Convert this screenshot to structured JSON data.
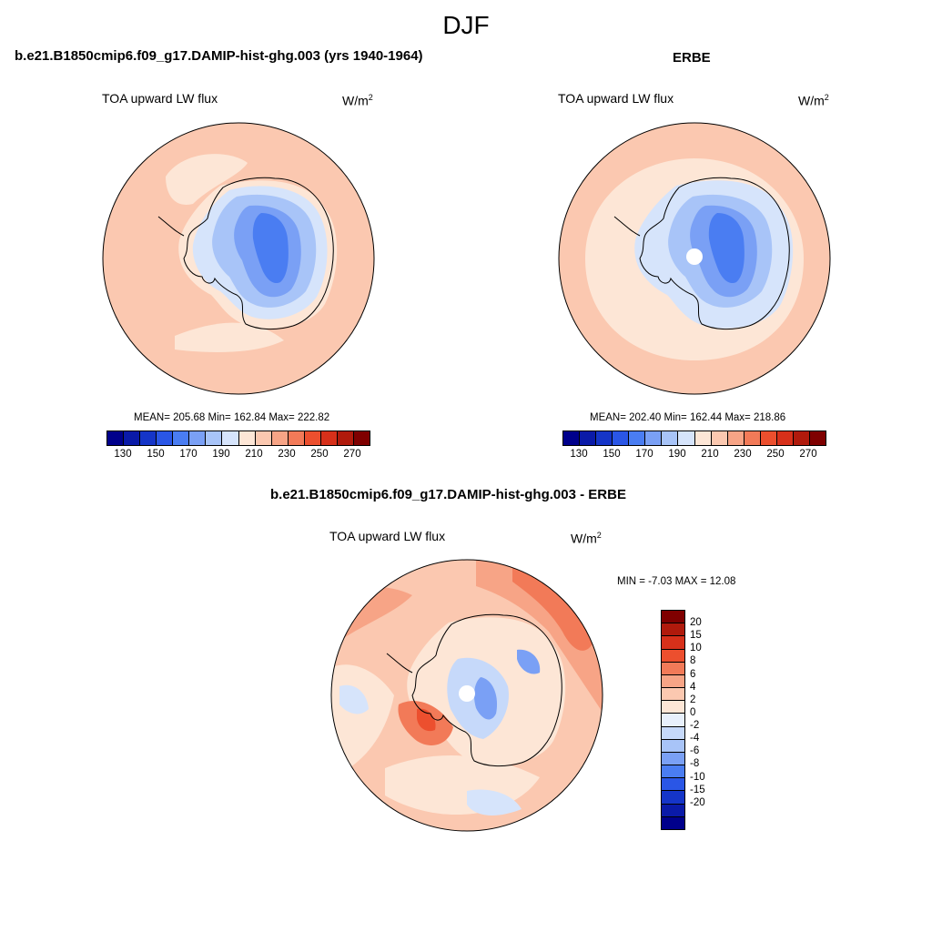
{
  "figure_title": "DJF",
  "panels": [
    {
      "case_title": "b.e21.B1850cmip6.f09_g17.DAMIP-hist-ghg.003 (yrs 1940-1964)",
      "variable": "TOA upward LW flux",
      "units_base": "W/m",
      "units_exp": "2",
      "stats": "MEAN= 205.68  Min= 162.84  Max= 222.82"
    },
    {
      "case_title": "ERBE",
      "variable": "TOA upward LW flux",
      "units_base": "W/m",
      "units_exp": "2",
      "stats": "MEAN= 202.40  Min= 162.44  Max= 218.86"
    },
    {
      "case_title": "b.e21.B1850cmip6.f09_g17.DAMIP-hist-ghg.003 - ERBE",
      "variable": "TOA upward LW flux",
      "units_base": "W/m",
      "units_exp": "2",
      "stats": "MIN =  -7.03 MAX =  12.08"
    }
  ],
  "main_colorbar": {
    "colors": [
      "#00008b",
      "#0a1aa8",
      "#1535c8",
      "#2a56e6",
      "#4a7df2",
      "#7aa0f5",
      "#a8c4f8",
      "#d6e4fb",
      "#fde6d6",
      "#fbc8b0",
      "#f7a486",
      "#f27a58",
      "#ec4f2e",
      "#d7301a",
      "#b01a0c",
      "#7f0000"
    ],
    "tick_labels": [
      "130",
      "150",
      "170",
      "190",
      "210",
      "230",
      "250",
      "270"
    ]
  },
  "diff_colorbar": {
    "colors": [
      "#7f0000",
      "#b01a0c",
      "#d7301a",
      "#ec4f2e",
      "#f27a58",
      "#f7a486",
      "#fbc8b0",
      "#fde6d6",
      "#e8f0fc",
      "#c6d9fa",
      "#a8c4f8",
      "#7aa0f5",
      "#4a7df2",
      "#2a56e6",
      "#1535c8",
      "#0a1aa8",
      "#00008b"
    ],
    "tick_labels": [
      "20",
      "15",
      "10",
      "8",
      "6",
      "4",
      "2",
      "0",
      "-2",
      "-4",
      "-6",
      "-8",
      "-10",
      "-15",
      "-20"
    ]
  }
}
